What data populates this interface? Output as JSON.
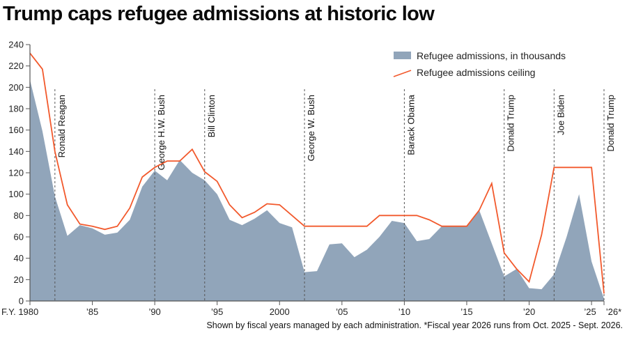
{
  "title": "Trump caps refugee admissions at historic low",
  "footnote": "Shown by fiscal years managed by each administration. *Fiscal year 2026 runs from Oct. 2025 - Sept. 2026.",
  "colors": {
    "area": "#91a5ba",
    "ceiling": "#f2592c",
    "axis": "#555555",
    "admin_line": "#555555"
  },
  "chart_data": {
    "type": "area",
    "title": "Trump caps refugee admissions at historic low",
    "xlabel": "",
    "ylabel": "",
    "ylim": [
      0,
      240
    ],
    "xlim": [
      1980,
      2026
    ],
    "grid": false,
    "legend_position": "top-right",
    "y_ticks": [
      0,
      20,
      40,
      60,
      80,
      100,
      120,
      140,
      160,
      180,
      200,
      220,
      240
    ],
    "x_ticks": [
      {
        "value": 1980,
        "label": "F.Y. 1980"
      },
      {
        "value": 1985,
        "label": "’85"
      },
      {
        "value": 1990,
        "label": "’90"
      },
      {
        "value": 1995,
        "label": "’95"
      },
      {
        "value": 2000,
        "label": "2000"
      },
      {
        "value": 2005,
        "label": "’05"
      },
      {
        "value": 2010,
        "label": "’10"
      },
      {
        "value": 2015,
        "label": "’15"
      },
      {
        "value": 2020,
        "label": "’20"
      },
      {
        "value": 2025,
        "label": "’25"
      },
      {
        "value": 2026,
        "label": "’26*"
      }
    ],
    "series": [
      {
        "name": "Refugee admissions, in thousands",
        "kind": "area",
        "x": [
          1980,
          1981,
          1982,
          1983,
          1984,
          1985,
          1986,
          1987,
          1988,
          1989,
          1990,
          1991,
          1992,
          1993,
          1994,
          1995,
          1996,
          1997,
          1998,
          1999,
          2000,
          2001,
          2002,
          2003,
          2004,
          2005,
          2006,
          2007,
          2008,
          2009,
          2010,
          2011,
          2012,
          2013,
          2014,
          2015,
          2016,
          2017,
          2018,
          2019,
          2020,
          2021,
          2022,
          2023,
          2024,
          2025,
          2026
        ],
        "values": [
          207,
          159,
          98,
          61,
          71,
          68,
          62,
          64,
          76,
          107,
          122,
          113,
          132,
          120,
          113,
          100,
          76,
          71,
          77,
          85,
          73,
          69,
          27,
          28,
          53,
          54,
          41,
          48,
          60,
          75,
          73,
          56,
          58,
          70,
          70,
          70,
          85,
          54,
          23,
          30,
          12,
          11,
          25,
          60,
          100,
          37,
          2
        ]
      },
      {
        "name": "Refugee admissions ceiling",
        "kind": "line",
        "x": [
          1980,
          1981,
          1982,
          1983,
          1984,
          1985,
          1986,
          1987,
          1988,
          1989,
          1990,
          1991,
          1992,
          1993,
          1994,
          1995,
          1996,
          1997,
          1998,
          1999,
          2000,
          2001,
          2002,
          2003,
          2004,
          2005,
          2006,
          2007,
          2008,
          2009,
          2010,
          2011,
          2012,
          2013,
          2014,
          2015,
          2016,
          2017,
          2018,
          2019,
          2020,
          2021,
          2022,
          2023,
          2024,
          2025,
          2026
        ],
        "values": [
          232,
          217,
          140,
          90,
          72,
          70,
          67,
          70,
          87,
          116,
          125,
          131,
          131,
          142,
          121,
          112,
          90,
          78,
          83,
          91,
          90,
          80,
          70,
          70,
          70,
          70,
          70,
          70,
          80,
          80,
          80,
          80,
          76,
          70,
          70,
          70,
          85,
          110,
          45,
          30,
          18,
          62,
          125,
          125,
          125,
          125,
          7
        ]
      }
    ],
    "administrations": [
      {
        "name": "Ronald Reagan",
        "start": 1982
      },
      {
        "name": "George H.W. Bush",
        "start": 1990
      },
      {
        "name": "Bill Clinton",
        "start": 1994
      },
      {
        "name": "George W. Bush",
        "start": 2002
      },
      {
        "name": "Barack Obama",
        "start": 2010
      },
      {
        "name": "Donald Trump",
        "start": 2018
      },
      {
        "name": "Joe Biden",
        "start": 2022
      },
      {
        "name": "Donald Trump",
        "start": 2026
      }
    ],
    "legend": [
      {
        "label": "Refugee admissions, in thousands",
        "kind": "area"
      },
      {
        "label": "Refugee admissions ceiling",
        "kind": "line"
      }
    ]
  }
}
